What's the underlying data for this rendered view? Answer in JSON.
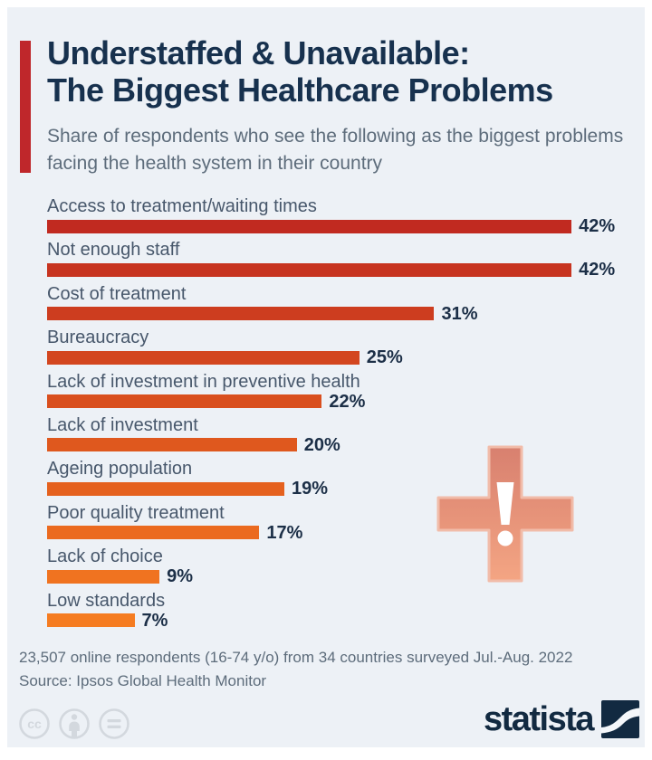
{
  "header": {
    "title_line1": "Understaffed & Unavailable:",
    "title_line2": "The Biggest Healthcare Problems",
    "subtitle": "Share of respondents who see the following as the biggest problems facing the health system in their country"
  },
  "chart_data": {
    "type": "bar",
    "orientation": "horizontal",
    "unit": "%",
    "categories": [
      "Access to treatment/waiting times",
      "Not enough staff",
      "Cost of treatment",
      "Bureaucracy",
      "Lack of investment in preventive health",
      "Lack of investment",
      "Ageing population",
      "Poor quality treatment",
      "Lack of choice",
      "Low standards"
    ],
    "values": [
      42,
      42,
      31,
      25,
      22,
      20,
      19,
      17,
      9,
      7
    ],
    "value_labels": [
      "42%",
      "42%",
      "31%",
      "25%",
      "22%",
      "20%",
      "19%",
      "17%",
      "9%",
      "7%"
    ],
    "bar_colors": [
      "#c12a20",
      "#c73420",
      "#cd3d1f",
      "#d3461f",
      "#d94f1e",
      "#df581e",
      "#e5611e",
      "#eb6a1f",
      "#f07320",
      "#f57c21"
    ],
    "xlim": [
      0,
      45
    ],
    "grid": false,
    "legend": false,
    "value_label_position": "right-of-bar"
  },
  "footer": {
    "note": "23,507 online respondents (16-74 y/o) from 34 countries surveyed Jul.-Aug. 2022",
    "source": "Source: Ipsos Global Health Monitor"
  },
  "branding": {
    "logo_text": "statista"
  },
  "license_icons": [
    "cc-icon",
    "attribution-person-icon",
    "equal-no-derivatives-icon"
  ],
  "colors": {
    "background": "#edf1f6",
    "accent_red": "#bf272b",
    "title": "#17314e",
    "muted_text": "#5d6c7b",
    "label_text": "#47576b",
    "value_text": "#1c2f47",
    "brand": "#122a41",
    "icon_gray": "#d3d8de"
  },
  "decoration": {
    "cross_icon": {
      "gradient_top": "#d8806f",
      "gradient_bottom": "#f4a583",
      "edge_highlight": "#f1bca9",
      "exclamation_color": "#ffffff"
    }
  }
}
